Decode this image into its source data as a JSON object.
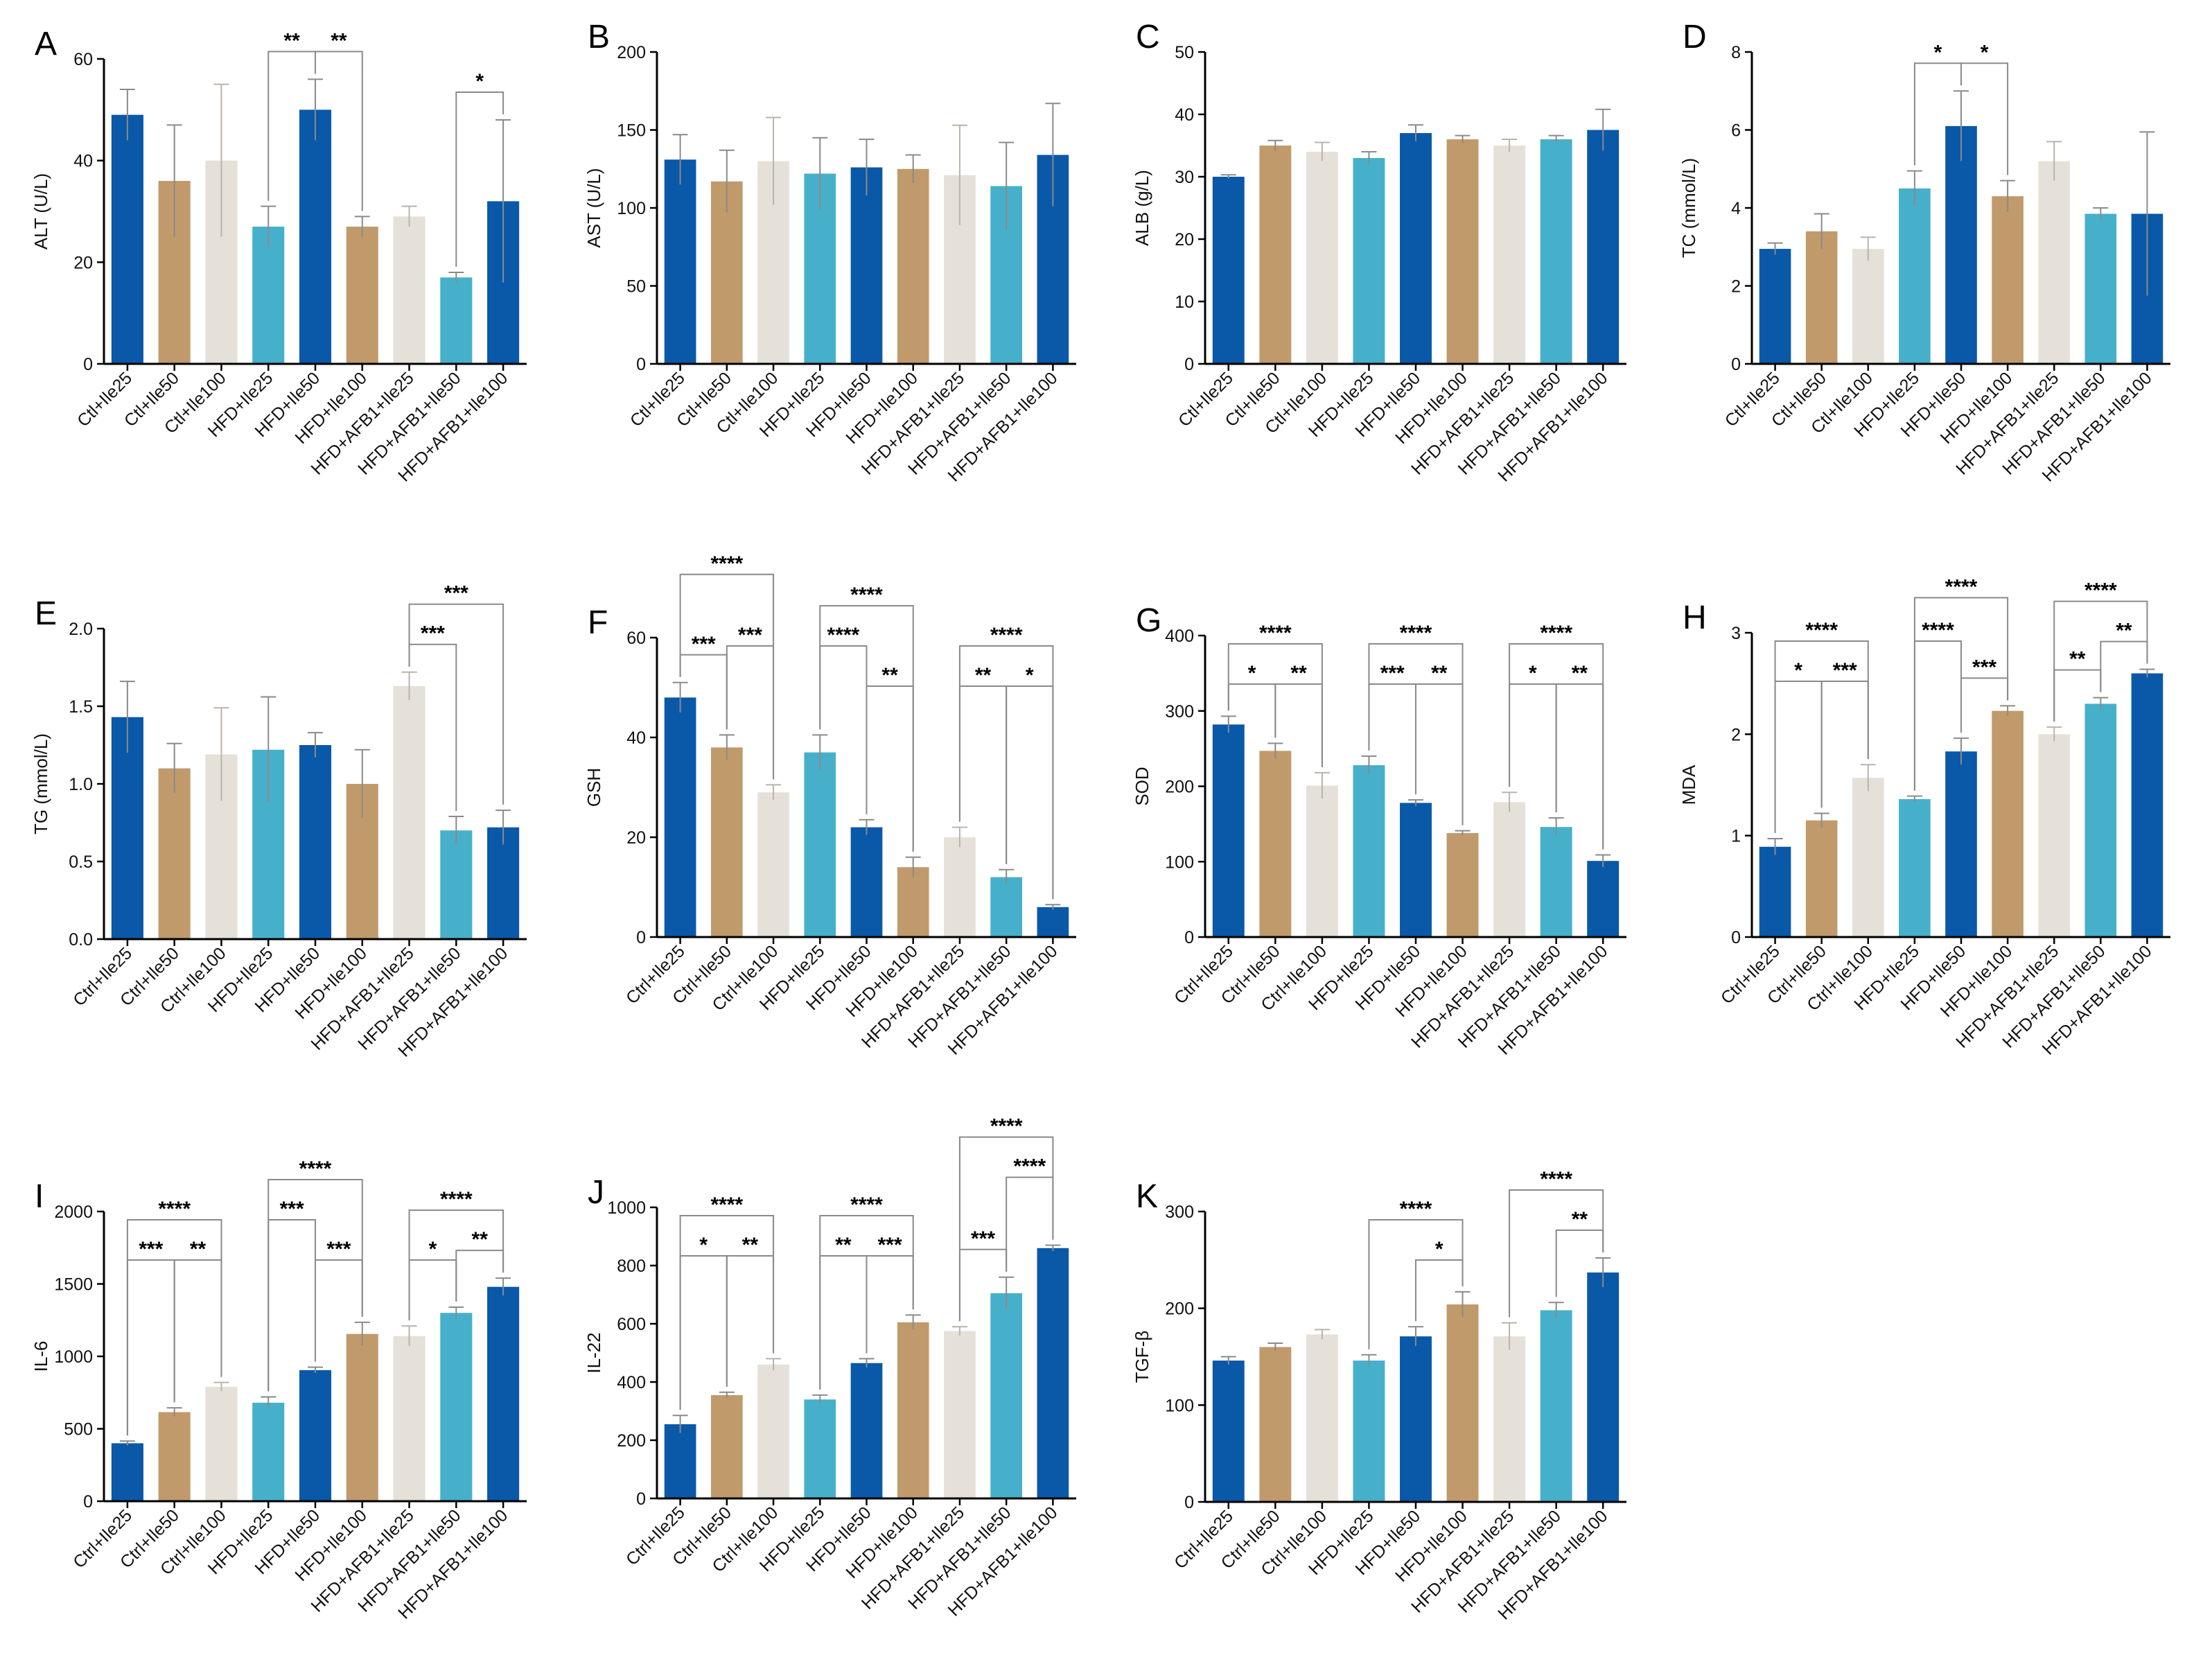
{
  "figure": {
    "title": ""
  },
  "colors": [
    "#0a58a8",
    "#c19a6b",
    "#e6e1d8",
    "#46b0cb"
  ],
  "error_color": "#8a8a8a",
  "chart_data": [
    {
      "letter": "A",
      "type": "bar",
      "ylabel": "ALT (U/L)",
      "ylim": [
        0,
        60
      ],
      "yticks": [
        0,
        20,
        40,
        60
      ],
      "categories": [
        "Ctl+Ile25",
        "Ctl+Ile50",
        "Ctl+Ile100",
        "HFD+Ile25",
        "HFD+Ile50",
        "HFD+Ile100",
        "HFD+AFB1+Ile25",
        "HFD+AFB1+Ile50",
        "HFD+AFB1+Ile100"
      ],
      "values": [
        49,
        36,
        40,
        27,
        50,
        27,
        29,
        17,
        32
      ],
      "errors": [
        5,
        11,
        15,
        4,
        6,
        2,
        2,
        1,
        16
      ],
      "sig": [
        {
          "from": 3,
          "to": 4,
          "label": "**",
          "level": 0
        },
        {
          "from": 4,
          "to": 5,
          "label": "**",
          "level": 0
        },
        {
          "from": 7,
          "to": 8,
          "label": "*",
          "level": 0
        }
      ]
    },
    {
      "letter": "B",
      "type": "bar",
      "ylabel": "AST (U/L)",
      "ylim": [
        0,
        200
      ],
      "yticks": [
        0,
        50,
        100,
        150,
        200
      ],
      "categories": [
        "Ctl+Ile25",
        "Ctl+Ile50",
        "Ctl+Ile100",
        "HFD+Ile25",
        "HFD+Ile50",
        "HFD+Ile100",
        "HFD+AFB1+Ile25",
        "HFD+AFB1+Ile50",
        "HFD+AFB1+Ile100"
      ],
      "values": [
        131,
        117,
        130,
        122,
        126,
        125,
        121,
        114,
        134
      ],
      "errors": [
        16,
        20,
        28,
        23,
        18,
        9,
        32,
        28,
        33
      ],
      "sig": []
    },
    {
      "letter": "C",
      "type": "bar",
      "ylabel": "ALB (g/L)",
      "ylim": [
        0,
        50
      ],
      "yticks": [
        0,
        10,
        20,
        30,
        40,
        50
      ],
      "categories": [
        "Ctl+Ile25",
        "Ctl+Ile50",
        "Ctl+Ile100",
        "HFD+Ile25",
        "HFD+Ile50",
        "HFD+Ile100",
        "HFD+AFB1+Ile25",
        "HFD+AFB1+Ile50",
        "HFD+AFB1+Ile100"
      ],
      "values": [
        30,
        35,
        34,
        33,
        37,
        36,
        35,
        36,
        37.5
      ],
      "errors": [
        0.3,
        0.8,
        1.5,
        1,
        1.3,
        0.6,
        1,
        0.6,
        3.3
      ],
      "sig": []
    },
    {
      "letter": "D",
      "type": "bar",
      "ylabel": "TC (mmol/L)",
      "ylim": [
        0,
        8
      ],
      "yticks": [
        0,
        2,
        4,
        6,
        8
      ],
      "categories": [
        "Ctl+Ile25",
        "Ctl+Ile50",
        "Ctl+Ile100",
        "HFD+Ile25",
        "HFD+Ile50",
        "HFD+Ile100",
        "HFD+AFB1+Ile25",
        "HFD+AFB1+Ile50",
        "HFD+AFB1+Ile100"
      ],
      "values": [
        2.95,
        3.4,
        2.95,
        4.5,
        6.1,
        4.3,
        5.2,
        3.85,
        3.85
      ],
      "errors": [
        0.15,
        0.45,
        0.3,
        0.45,
        0.9,
        0.4,
        0.5,
        0.15,
        2.1
      ],
      "sig": [
        {
          "from": 3,
          "to": 4,
          "label": "*",
          "level": 0
        },
        {
          "from": 4,
          "to": 5,
          "label": "*",
          "level": 0
        }
      ]
    },
    {
      "letter": "E",
      "type": "bar",
      "ylabel": "TG (mmol/L)",
      "ylim": [
        0,
        2.0
      ],
      "yticks": [
        0.0,
        0.5,
        1.0,
        1.5,
        2.0
      ],
      "tick_decimals": 1,
      "categories": [
        "Ctrl+Ile25",
        "Ctrl+Ile50",
        "Ctrl+Ile100",
        "HFD+Ile25",
        "HFD+Ile50",
        "HFD+Ile100",
        "HFD+AFB1+Ile25",
        "HFD+AFB1+Ile50",
        "HFD+AFB1+Ile100"
      ],
      "values": [
        1.43,
        1.1,
        1.19,
        1.22,
        1.25,
        1.0,
        1.63,
        0.7,
        0.72
      ],
      "errors": [
        0.23,
        0.16,
        0.3,
        0.34,
        0.08,
        0.22,
        0.09,
        0.09,
        0.11
      ],
      "sig": [
        {
          "from": 6,
          "to": 7,
          "label": "***",
          "level": 0
        },
        {
          "from": 6,
          "to": 8,
          "label": "***",
          "level": 1
        }
      ]
    },
    {
      "letter": "F",
      "type": "bar",
      "ylabel": "GSH",
      "ylim": [
        0,
        60
      ],
      "yticks": [
        0,
        20,
        40,
        60
      ],
      "categories": [
        "Ctrl+Ile25",
        "Ctrl+Ile50",
        "Ctrl+Ile100",
        "HFD+Ile25",
        "HFD+Ile50",
        "HFD+Ile100",
        "HFD+AFB1+Ile25",
        "HFD+AFB1+Ile50",
        "HFD+AFB1+Ile100"
      ],
      "values": [
        48,
        38,
        29,
        37,
        22,
        14,
        20,
        12,
        6
      ],
      "errors": [
        3,
        2.5,
        1.5,
        3.5,
        1.5,
        2,
        2,
        1.5,
        0.5
      ],
      "sig": [
        {
          "from": 0,
          "to": 1,
          "label": "***",
          "level": 0
        },
        {
          "from": 1,
          "to": 2,
          "label": "***",
          "level": 1
        },
        {
          "from": 0,
          "to": 2,
          "label": "****",
          "level": 2
        },
        {
          "from": 3,
          "to": 4,
          "label": "****",
          "level": 1
        },
        {
          "from": 4,
          "to": 5,
          "label": "**",
          "level": 0
        },
        {
          "from": 3,
          "to": 5,
          "label": "****",
          "level": 2
        },
        {
          "from": 6,
          "to": 7,
          "label": "**",
          "level": 0
        },
        {
          "from": 7,
          "to": 8,
          "label": "*",
          "level": 0
        },
        {
          "from": 6,
          "to": 8,
          "label": "****",
          "level": 1
        }
      ]
    },
    {
      "letter": "G",
      "type": "bar",
      "ylabel": "SOD",
      "ylim": [
        0,
        400
      ],
      "yticks": [
        0,
        100,
        200,
        300,
        400
      ],
      "categories": [
        "Ctrl+Ile25",
        "Ctrl+Ile50",
        "Ctrl+Ile100",
        "HFD+Ile25",
        "HFD+Ile50",
        "HFD+Ile100",
        "HFD+AFB1+Ile25",
        "HFD+AFB1+Ile50",
        "HFD+AFB1+Ile100"
      ],
      "values": [
        282,
        247,
        201,
        228,
        178,
        138,
        179,
        146,
        101
      ],
      "errors": [
        11,
        10,
        17,
        12,
        4,
        3,
        13,
        12,
        8
      ],
      "sig": [
        {
          "from": 0,
          "to": 1,
          "label": "*",
          "level": 0
        },
        {
          "from": 1,
          "to": 2,
          "label": "**",
          "level": 0
        },
        {
          "from": 0,
          "to": 2,
          "label": "****",
          "level": 1
        },
        {
          "from": 3,
          "to": 4,
          "label": "***",
          "level": 0
        },
        {
          "from": 4,
          "to": 5,
          "label": "**",
          "level": 0
        },
        {
          "from": 3,
          "to": 5,
          "label": "****",
          "level": 1
        },
        {
          "from": 6,
          "to": 7,
          "label": "*",
          "level": 0
        },
        {
          "from": 7,
          "to": 8,
          "label": "**",
          "level": 0
        },
        {
          "from": 6,
          "to": 8,
          "label": "****",
          "level": 1
        }
      ]
    },
    {
      "letter": "H",
      "type": "bar",
      "ylabel": "MDA",
      "ylim": [
        0,
        3
      ],
      "yticks": [
        0,
        1,
        2,
        3
      ],
      "categories": [
        "Ctrl+Ile25",
        "Ctrl+Ile50",
        "Ctrl+Ile100",
        "HFD+Ile25",
        "HFD+Ile50",
        "HFD+Ile100",
        "HFD+AFB1+Ile25",
        "HFD+AFB1+Ile50",
        "HFD+AFB1+Ile100"
      ],
      "values": [
        0.89,
        1.15,
        1.57,
        1.36,
        1.83,
        2.23,
        2.0,
        2.3,
        2.6
      ],
      "errors": [
        0.08,
        0.07,
        0.13,
        0.03,
        0.13,
        0.05,
        0.07,
        0.06,
        0.04
      ],
      "sig": [
        {
          "from": 0,
          "to": 1,
          "label": "*",
          "level": 0
        },
        {
          "from": 1,
          "to": 2,
          "label": "***",
          "level": 0
        },
        {
          "from": 0,
          "to": 2,
          "label": "****",
          "level": 1
        },
        {
          "from": 3,
          "to": 4,
          "label": "****",
          "level": 1
        },
        {
          "from": 4,
          "to": 5,
          "label": "***",
          "level": 0
        },
        {
          "from": 3,
          "to": 5,
          "label": "****",
          "level": 2
        },
        {
          "from": 6,
          "to": 7,
          "label": "**",
          "level": 0
        },
        {
          "from": 7,
          "to": 8,
          "label": "**",
          "level": 0
        },
        {
          "from": 6,
          "to": 8,
          "label": "****",
          "level": 1
        }
      ]
    },
    {
      "letter": "I",
      "type": "bar",
      "ylabel": "IL-6",
      "ylim": [
        0,
        2000
      ],
      "yticks": [
        0,
        500,
        1000,
        1500,
        2000
      ],
      "categories": [
        "Ctrl+Ile25",
        "Ctrl+Ile50",
        "Ctrl+Ile100",
        "HFD+Ile25",
        "HFD+Ile50",
        "HFD+Ile100",
        "HFD+AFB1+Ile25",
        "HFD+AFB1+Ile50",
        "HFD+AFB1+Ile100"
      ],
      "values": [
        400,
        615,
        790,
        680,
        905,
        1155,
        1140,
        1300,
        1480
      ],
      "errors": [
        15,
        30,
        30,
        40,
        20,
        80,
        70,
        40,
        60
      ],
      "sig": [
        {
          "from": 0,
          "to": 1,
          "label": "***",
          "level": 0
        },
        {
          "from": 1,
          "to": 2,
          "label": "**",
          "level": 0
        },
        {
          "from": 0,
          "to": 2,
          "label": "****",
          "level": 1
        },
        {
          "from": 3,
          "to": 4,
          "label": "***",
          "level": 1
        },
        {
          "from": 4,
          "to": 5,
          "label": "***",
          "level": 0
        },
        {
          "from": 3,
          "to": 5,
          "label": "****",
          "level": 2
        },
        {
          "from": 6,
          "to": 7,
          "label": "*",
          "level": 0
        },
        {
          "from": 7,
          "to": 8,
          "label": "**",
          "level": 0
        },
        {
          "from": 6,
          "to": 8,
          "label": "****",
          "level": 1
        }
      ]
    },
    {
      "letter": "J",
      "type": "bar",
      "ylabel": "IL-22",
      "ylim": [
        0,
        1000
      ],
      "yticks": [
        0,
        200,
        400,
        600,
        800,
        1000
      ],
      "categories": [
        "Ctrl+Ile25",
        "Ctrl+Ile50",
        "Ctrl+Ile100",
        "HFD+Ile25",
        "HFD+Ile50",
        "HFD+Ile100",
        "HFD+AFB1+Ile25",
        "HFD+AFB1+Ile50",
        "HFD+AFB1+Ile100"
      ],
      "values": [
        255,
        355,
        460,
        340,
        465,
        605,
        575,
        705,
        860
      ],
      "errors": [
        30,
        10,
        20,
        15,
        15,
        25,
        15,
        55,
        10
      ],
      "sig": [
        {
          "from": 0,
          "to": 1,
          "label": "*",
          "level": 0
        },
        {
          "from": 1,
          "to": 2,
          "label": "**",
          "level": 0
        },
        {
          "from": 0,
          "to": 2,
          "label": "****",
          "level": 1
        },
        {
          "from": 3,
          "to": 4,
          "label": "**",
          "level": 0
        },
        {
          "from": 4,
          "to": 5,
          "label": "***",
          "level": 0
        },
        {
          "from": 3,
          "to": 5,
          "label": "****",
          "level": 1
        },
        {
          "from": 6,
          "to": 7,
          "label": "***",
          "level": 0
        },
        {
          "from": 7,
          "to": 8,
          "label": "****",
          "level": 1
        },
        {
          "from": 6,
          "to": 8,
          "label": "****",
          "level": 2
        }
      ]
    },
    {
      "letter": "K",
      "type": "bar",
      "ylabel": "TGF-β",
      "ylim": [
        0,
        300
      ],
      "yticks": [
        0,
        100,
        200,
        300
      ],
      "categories": [
        "Ctrl+Ile25",
        "Ctrl+Ile50",
        "Ctrl+Ile100",
        "HFD+Ile25",
        "HFD+Ile50",
        "HFD+Ile100",
        "HFD+AFB1+Ile25",
        "HFD+AFB1+Ile50",
        "HFD+AFB1+Ile100"
      ],
      "values": [
        146,
        160,
        173,
        146,
        171,
        204,
        171,
        198,
        237
      ],
      "errors": [
        4,
        4,
        5,
        6,
        10,
        13,
        14,
        8,
        15
      ],
      "sig": [
        {
          "from": 4,
          "to": 5,
          "label": "*",
          "level": 0
        },
        {
          "from": 3,
          "to": 5,
          "label": "****",
          "level": 1
        },
        {
          "from": 7,
          "to": 8,
          "label": "**",
          "level": 0
        },
        {
          "from": 6,
          "to": 8,
          "label": "****",
          "level": 1
        }
      ]
    }
  ]
}
